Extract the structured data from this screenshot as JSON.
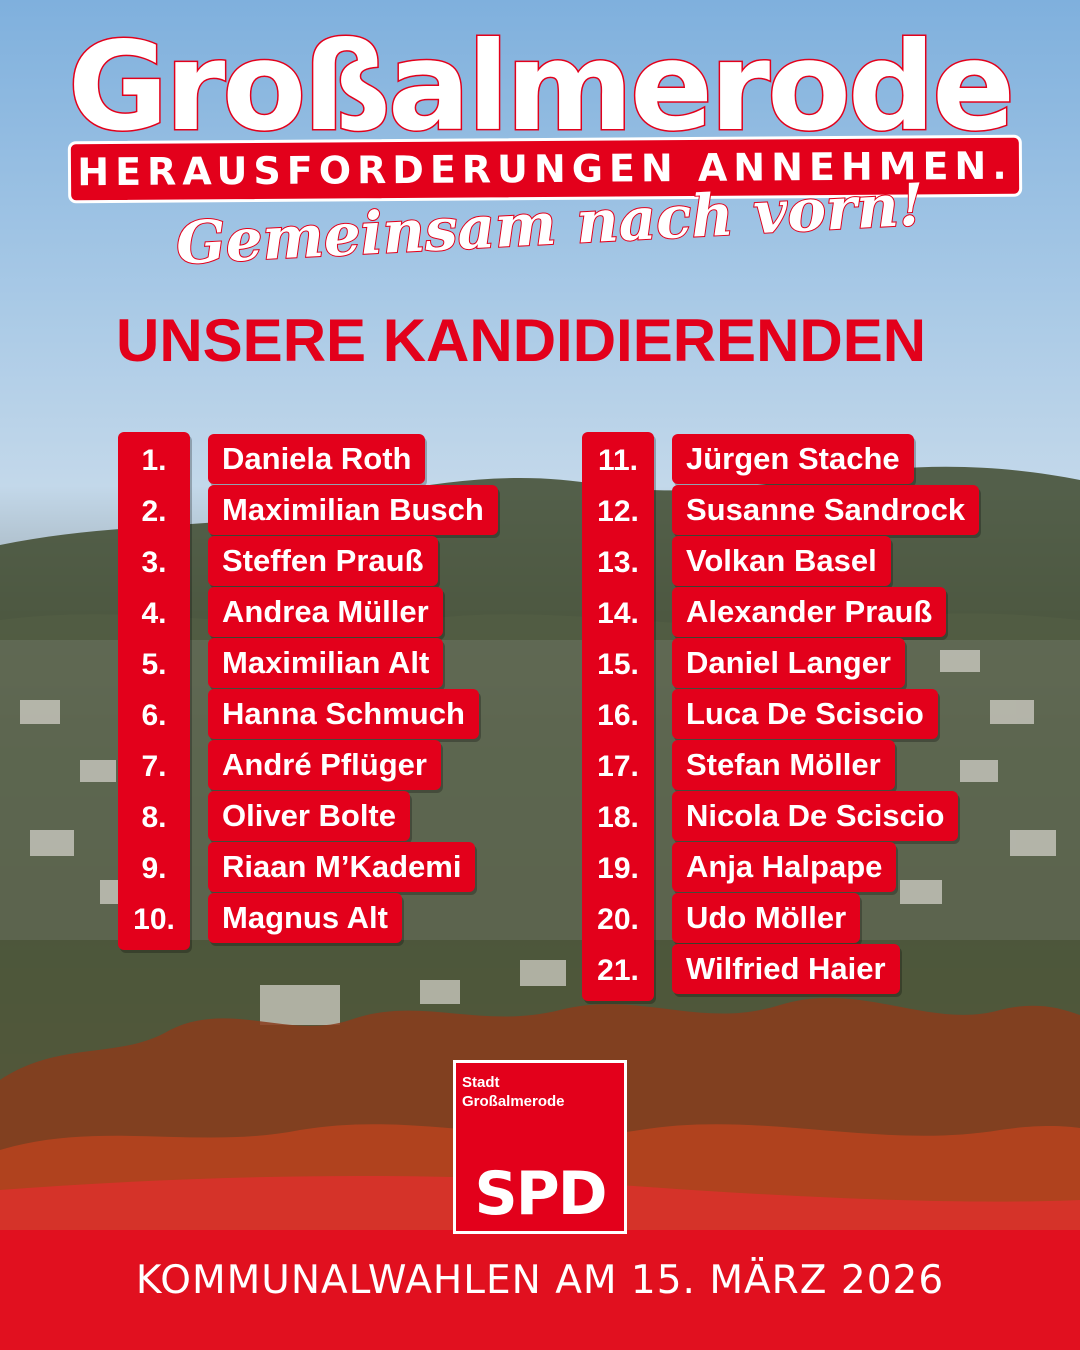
{
  "header": {
    "title": "Großalmerode",
    "slogan": "HERAUSFORDERUNGEN ANNEHMEN.",
    "slogan_script": "Gemeinsam nach vorn!"
  },
  "heading": "UNSERE KANDIDIERENDEN",
  "candidates_left": [
    {
      "num": "1.",
      "name": "Daniela Roth"
    },
    {
      "num": "2.",
      "name": "Maximilian Busch"
    },
    {
      "num": "3.",
      "name": "Steffen Prauß"
    },
    {
      "num": "4.",
      "name": "Andrea Müller"
    },
    {
      "num": "5.",
      "name": "Maximilian Alt"
    },
    {
      "num": "6.",
      "name": "Hanna Schmuch"
    },
    {
      "num": "7.",
      "name": "André Pflüger"
    },
    {
      "num": "8.",
      "name": "Oliver Bolte"
    },
    {
      "num": "9.",
      "name": "Riaan M’Kademi"
    },
    {
      "num": "10.",
      "name": "Magnus Alt"
    }
  ],
  "candidates_right": [
    {
      "num": "11.",
      "name": "Jürgen Stache"
    },
    {
      "num": "12.",
      "name": "Susanne Sandrock"
    },
    {
      "num": "13.",
      "name": "Volkan Basel"
    },
    {
      "num": "14.",
      "name": "Alexander Prauß"
    },
    {
      "num": "15.",
      "name": "Daniel Langer"
    },
    {
      "num": "16.",
      "name": "Luca De Sciscio"
    },
    {
      "num": "17.",
      "name": "Stefan Möller"
    },
    {
      "num": "18.",
      "name": "Nicola De Sciscio"
    },
    {
      "num": "19.",
      "name": "Anja Halpape"
    },
    {
      "num": "20.",
      "name": "Udo Möller"
    },
    {
      "num": "21.",
      "name": "Wilfried Haier"
    }
  ],
  "logo": {
    "line1": "Stadt",
    "line2": "Großalmerode",
    "party": "SPD"
  },
  "footer": "KOMMUNALWAHLEN AM 15. MÄRZ 2026",
  "colors": {
    "spd_red": "#e3001b",
    "white": "#ffffff"
  }
}
